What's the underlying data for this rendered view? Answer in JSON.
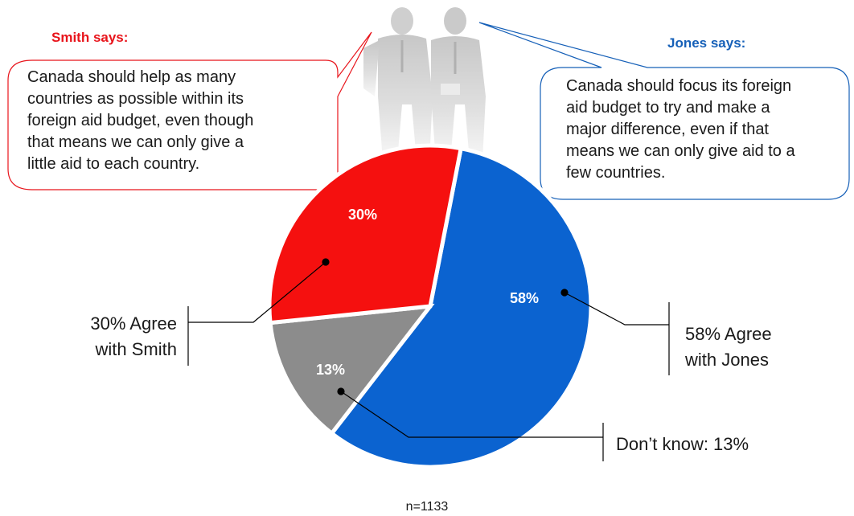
{
  "chart_data": {
    "type": "pie",
    "slices": [
      {
        "label": "Agree with Jones",
        "value": 58,
        "color": "#0b63d0",
        "display": "58%"
      },
      {
        "label": "Don't know",
        "value": 13,
        "color": "#8c8c8c",
        "display": "13%"
      },
      {
        "label": "Agree with Smith",
        "value": 30,
        "color": "#f5100f",
        "display": "30%"
      }
    ]
  },
  "smith": {
    "heading": "Smith says:",
    "color": "#e8141b",
    "lines": [
      "Canada should help as many",
      "countries as possible within its",
      "foreign aid budget, even though",
      "that means we can only give a",
      "little aid to each country."
    ]
  },
  "jones": {
    "heading": "Jones says:",
    "color": "#1660b8",
    "lines": [
      "Canada should focus its foreign",
      "aid budget to try and make a",
      "major difference, even if that",
      "means we can only give aid to a",
      "few countries."
    ]
  },
  "callouts": {
    "smith": [
      "30% Agree",
      "with Smith"
    ],
    "jones": [
      "58% Agree",
      "with Jones"
    ],
    "dontknow": "Don’t know: 13%"
  },
  "sample_size": "n=1133",
  "image": {
    "icon": "businessmen-photo-icon"
  }
}
